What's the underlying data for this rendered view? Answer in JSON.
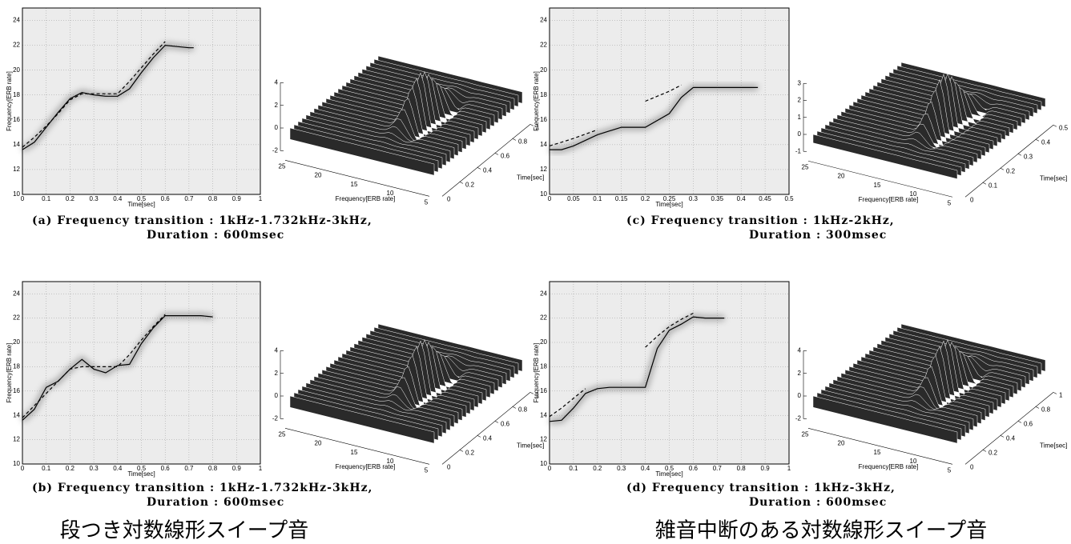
{
  "chart_data": [
    {
      "type": "line",
      "xlabel": "Time[sec]",
      "ylabel": "Frequency[ERB rate]",
      "caption": [
        "(a) Frequency transition : 1kHz-1.732kHz-3kHz,",
        "Duration : 600msec"
      ],
      "x": [
        0,
        0.05,
        0.1,
        0.15,
        0.2,
        0.25,
        0.3,
        0.35,
        0.4,
        0.45,
        0.5,
        0.55,
        0.6,
        0.65,
        0.7,
        0.72
      ],
      "series": [
        {
          "color": "#000000",
          "style": "solid",
          "values": [
            13.6,
            14.2,
            15.4,
            16.6,
            17.7,
            18.2,
            18.0,
            17.9,
            17.9,
            18.5,
            19.8,
            21.0,
            22.0,
            21.9,
            21.8,
            21.8
          ]
        },
        {
          "color": "#000000",
          "style": "dashed",
          "values": [
            13.8,
            14.6,
            15.5,
            16.5,
            17.6,
            18.1,
            18.1,
            18.1,
            18.1,
            19.1,
            20.2,
            21.3,
            22.3,
            null,
            null,
            null
          ]
        }
      ],
      "xlim": [
        0,
        1
      ],
      "ylim": [
        10,
        25
      ],
      "xticks": [
        0,
        0.1,
        0.2,
        0.3,
        0.4,
        0.5,
        0.6,
        0.7,
        0.8,
        0.9,
        1
      ],
      "yticks": [
        10,
        12,
        14,
        16,
        18,
        20,
        22,
        24
      ],
      "grid": true,
      "surface": {
        "xlabel": "Frequency[ERB rate]",
        "ylabel": "Time[sec]",
        "xticks": [
          25,
          20,
          15,
          10,
          5
        ],
        "yticks": [
          0.2,
          0.4,
          0.6,
          0.8,
          1
        ],
        "zticks": [
          -2,
          0,
          2,
          4
        ],
        "origin_label": "0"
      }
    },
    {
      "type": "line",
      "xlabel": "Time[sec]",
      "ylabel": "Frequency[ERB rate]",
      "caption": [
        "(b) Frequency transition : 1kHz-1.732kHz-3kHz,",
        "Duration : 600msec"
      ],
      "x": [
        0,
        0.05,
        0.1,
        0.15,
        0.2,
        0.25,
        0.3,
        0.35,
        0.4,
        0.45,
        0.5,
        0.55,
        0.6,
        0.65,
        0.7,
        0.75,
        0.8
      ],
      "series": [
        {
          "color": "#000000",
          "style": "solid",
          "values": [
            13.6,
            14.5,
            16.3,
            16.8,
            17.8,
            18.6,
            17.8,
            17.5,
            18.1,
            18.2,
            19.9,
            21.2,
            22.2,
            22.2,
            22.2,
            22.2,
            22.1
          ]
        },
        {
          "color": "#000000",
          "style": "dashed",
          "values": [
            13.8,
            14.8,
            15.8,
            16.8,
            17.8,
            18.0,
            18.0,
            18.0,
            18.0,
            19.0,
            20.2,
            21.3,
            22.3,
            null,
            null,
            null,
            null
          ]
        }
      ],
      "xlim": [
        0,
        1
      ],
      "ylim": [
        10,
        25
      ],
      "xticks": [
        0,
        0.1,
        0.2,
        0.3,
        0.4,
        0.5,
        0.6,
        0.7,
        0.8,
        0.9,
        1
      ],
      "yticks": [
        10,
        12,
        14,
        16,
        18,
        20,
        22,
        24
      ],
      "grid": true,
      "surface": {
        "xlabel": "Frequency[ERB rate]",
        "ylabel": "Time[sec]",
        "xticks": [
          25,
          20,
          15,
          10,
          5
        ],
        "yticks": [
          0.2,
          0.4,
          0.6,
          0.8,
          1
        ],
        "zticks": [
          -2,
          0,
          2,
          4
        ],
        "origin_label": "0"
      }
    },
    {
      "type": "line",
      "xlabel": "Time[sec]",
      "ylabel": "Frequency[ERB rate]",
      "caption": [
        "(c) Frequency transition : 1kHz-2kHz,",
        "Duration : 300msec"
      ],
      "x": [
        0,
        0.025,
        0.05,
        0.1,
        0.15,
        0.2,
        0.25,
        0.275,
        0.3,
        0.35,
        0.4,
        0.435
      ],
      "series": [
        {
          "color": "#000000",
          "style": "solid",
          "values": [
            13.6,
            13.6,
            13.9,
            14.8,
            15.4,
            15.4,
            16.5,
            17.8,
            18.6,
            18.6,
            18.6,
            18.6
          ]
        },
        {
          "color": "#000000",
          "style": "dashed",
          "values": [
            13.9,
            14.2,
            14.5,
            15.2,
            null,
            17.5,
            18.3,
            18.8,
            null,
            null,
            null,
            null
          ]
        }
      ],
      "xlim": [
        0,
        0.5
      ],
      "ylim": [
        10,
        25
      ],
      "xticks": [
        0,
        0.05,
        0.1,
        0.15,
        0.2,
        0.25,
        0.3,
        0.35,
        0.4,
        0.45,
        0.5
      ],
      "yticks": [
        10,
        12,
        14,
        16,
        18,
        20,
        22,
        24
      ],
      "grid": true,
      "surface": {
        "xlabel": "Frequency[ERB rate]",
        "ylabel": "Time[sec]",
        "xticks": [
          25,
          20,
          15,
          10,
          5
        ],
        "yticks": [
          0.1,
          0.2,
          0.3,
          0.4,
          0.5
        ],
        "zticks": [
          -1,
          0,
          1,
          2,
          3
        ],
        "origin_label": "0"
      }
    },
    {
      "type": "line",
      "xlabel": "Time[sec]",
      "ylabel": "Frequency[ERB rate]",
      "caption": [
        "(d) Frequency transition : 1kHz-3kHz,",
        "Duration : 600msec"
      ],
      "x": [
        0,
        0.05,
        0.1,
        0.15,
        0.2,
        0.25,
        0.3,
        0.35,
        0.4,
        0.45,
        0.5,
        0.55,
        0.6,
        0.65,
        0.7,
        0.73
      ],
      "series": [
        {
          "color": "#000000",
          "style": "solid",
          "values": [
            13.5,
            13.6,
            14.6,
            15.8,
            16.2,
            16.3,
            16.3,
            16.3,
            16.3,
            19.5,
            21.0,
            21.5,
            22.1,
            22.0,
            22.0,
            22.0
          ]
        },
        {
          "color": "#000000",
          "style": "dashed",
          "values": [
            13.9,
            14.6,
            15.4,
            16.2,
            null,
            null,
            null,
            null,
            19.6,
            20.5,
            21.3,
            21.9,
            22.4,
            null,
            null,
            null
          ]
        }
      ],
      "xlim": [
        0,
        1
      ],
      "ylim": [
        10,
        25
      ],
      "xticks": [
        0,
        0.1,
        0.2,
        0.3,
        0.4,
        0.5,
        0.6,
        0.7,
        0.8,
        0.9,
        1
      ],
      "yticks": [
        10,
        12,
        14,
        16,
        18,
        20,
        22,
        24
      ],
      "grid": true,
      "surface": {
        "xlabel": "Frequency[ERB rate]",
        "ylabel": "Time[sec]",
        "xticks": [
          25,
          20,
          15,
          10,
          5
        ],
        "yticks": [
          0.2,
          0.4,
          0.6,
          0.8,
          1
        ],
        "zticks": [
          -2,
          0,
          2,
          4
        ],
        "origin_label": "0"
      }
    }
  ],
  "group_titles": [
    "段つき対数線形スイープ音",
    "雑音中断のある対数線形スイープ音"
  ]
}
